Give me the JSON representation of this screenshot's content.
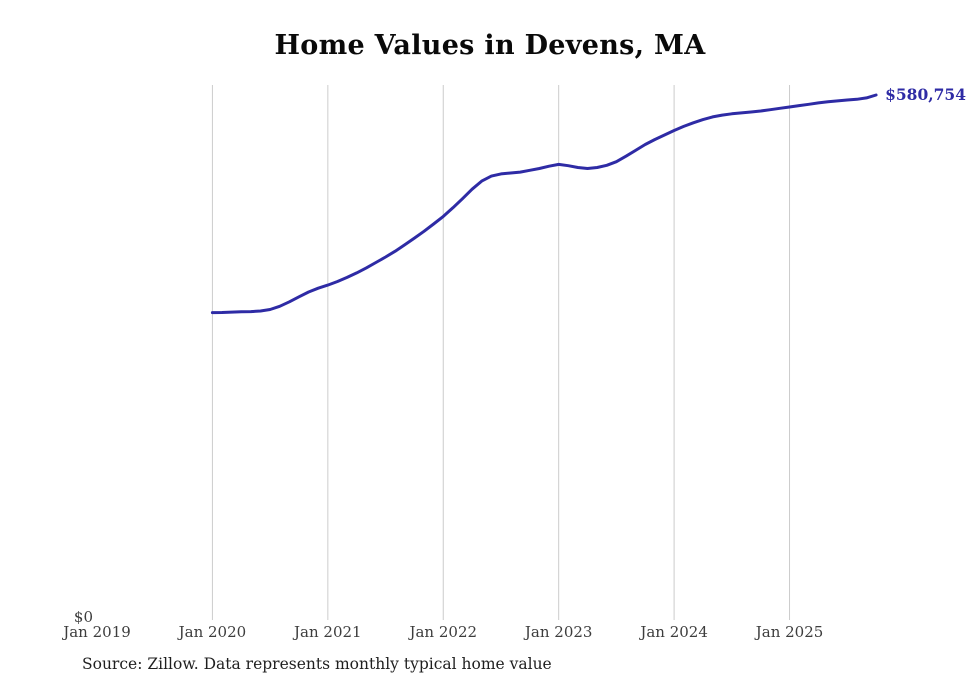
{
  "page": {
    "title": "Home Values in Devens, MA",
    "source_note": "Source: Zillow. Data represents monthly typical home value"
  },
  "chart_data": {
    "type": "line",
    "title": "Home Values in Devens, MA",
    "xlabel": "",
    "ylabel": "",
    "legend": "none",
    "grid": "vertical-only",
    "x_axis": {
      "ticks": [
        "Jan 2019",
        "Jan 2020",
        "Jan 2021",
        "Jan 2022",
        "Jan 2023",
        "Jan 2024",
        "Jan 2025"
      ],
      "gridlines_start_at_tick": 1
    },
    "y_axis": {
      "min_label": "$0",
      "min": 0,
      "ylim": [
        0,
        592000
      ]
    },
    "end_label": "$580,754",
    "end_value": 580754,
    "series": [
      {
        "name": "Typical home value",
        "start_month": "2020-01",
        "interval": "monthly",
        "values": [
          340000,
          340200,
          340600,
          341000,
          341200,
          341800,
          343500,
          347000,
          352000,
          357500,
          362800,
          367000,
          370500,
          374500,
          379000,
          384000,
          389500,
          395500,
          401500,
          408000,
          415000,
          422500,
          430000,
          438000,
          446500,
          456000,
          466000,
          476500,
          485500,
          491000,
          493500,
          494500,
          495500,
          497500,
          499500,
          502000,
          504000,
          502500,
          500500,
          499500,
          500500,
          503000,
          507000,
          513000,
          519500,
          526000,
          531500,
          536500,
          541500,
          546000,
          550000,
          553500,
          556500,
          558500,
          560000,
          561000,
          562000,
          563000,
          564500,
          566000,
          567500,
          569000,
          570500,
          572000,
          573200,
          574200,
          575200,
          576000,
          577500,
          580754
        ]
      }
    ],
    "colors": {
      "line": "#2e2ba5",
      "grid": "#cccccc",
      "tick_label": "#3d3d3d",
      "title": "#0a0a0a"
    }
  }
}
